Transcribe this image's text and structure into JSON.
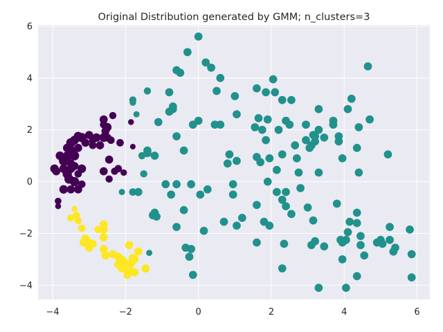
{
  "chart_data": {
    "type": "scatter",
    "title": "Original Distribution generated by GMM; n_clusters=3",
    "xlabel": "",
    "ylabel": "",
    "xlim": [
      -4.4,
      6.35
    ],
    "ylim": [
      -4.55,
      6.05
    ],
    "xticks": [
      -4,
      -2,
      0,
      2,
      4,
      6
    ],
    "yticks": [
      -4,
      -2,
      0,
      2,
      4,
      6
    ],
    "xtick_labels": [
      "−4",
      "−2",
      "0",
      "2",
      "4",
      "6"
    ],
    "ytick_labels": [
      "−4",
      "−2",
      "0",
      "2",
      "4",
      "6"
    ],
    "grid": true,
    "legend": false,
    "background": "#eaeaf2",
    "grid_color": "#ffffff",
    "colors": {
      "cluster_0": "#440154",
      "cluster_1": "#21918c",
      "cluster_2": "#fde725"
    },
    "series": [
      {
        "color": "#440154",
        "points": [
          [
            -3.0,
            1.8,
            38
          ],
          [
            -3.2,
            1.7,
            50
          ],
          [
            -3.3,
            1.75,
            45
          ],
          [
            -3.4,
            1.6,
            45
          ],
          [
            -3.5,
            1.5,
            50
          ],
          [
            -3.5,
            1.2,
            50
          ],
          [
            -3.6,
            1.3,
            42
          ],
          [
            -3.4,
            1.0,
            50
          ],
          [
            -3.6,
            1.0,
            45
          ],
          [
            -3.8,
            1.0,
            42
          ],
          [
            -3.7,
            0.8,
            50
          ],
          [
            -3.6,
            0.8,
            45
          ],
          [
            -3.7,
            0.5,
            42
          ],
          [
            -3.5,
            0.5,
            42
          ],
          [
            -3.95,
            0.5,
            42
          ],
          [
            -3.9,
            0.4,
            38
          ],
          [
            -3.6,
            0.3,
            50
          ],
          [
            -3.55,
            0.1,
            50
          ],
          [
            -3.4,
            0.0,
            50
          ],
          [
            -3.5,
            -0.3,
            38
          ],
          [
            -3.7,
            -0.3,
            42
          ],
          [
            -3.3,
            -0.3,
            38
          ],
          [
            -3.2,
            -0.1,
            32
          ],
          [
            -3.4,
            0.6,
            38
          ],
          [
            -3.2,
            0.5,
            42
          ],
          [
            -3.3,
            1.3,
            38
          ],
          [
            -3.1,
            1.5,
            38
          ],
          [
            -2.9,
            1.6,
            32
          ],
          [
            -2.9,
            1.4,
            32
          ],
          [
            -2.8,
            1.7,
            42
          ],
          [
            -2.6,
            1.7,
            45
          ],
          [
            -2.5,
            1.7,
            38
          ],
          [
            -2.6,
            2.4,
            38
          ],
          [
            -2.6,
            2.2,
            32
          ],
          [
            -2.5,
            2.1,
            42
          ],
          [
            -2.4,
            1.6,
            32
          ],
          [
            -2.35,
            2.55,
            30
          ],
          [
            -2.55,
            1.95,
            38
          ],
          [
            -2.7,
            1.4,
            38
          ],
          [
            -2.15,
            1.5,
            32
          ],
          [
            -2.45,
            0.85,
            38
          ],
          [
            -2.3,
            0.4,
            30
          ],
          [
            -2.2,
            0.5,
            32
          ],
          [
            -2.6,
            0.4,
            38
          ],
          [
            -2.05,
            0.35,
            24
          ],
          [
            -2.45,
            0.1,
            30
          ],
          [
            -1.85,
            2.3,
            20
          ],
          [
            -1.8,
            1.35,
            18
          ],
          [
            -3.85,
            -0.75,
            26
          ],
          [
            -3.85,
            -0.95,
            20
          ],
          [
            -3.3,
            0.3,
            32
          ],
          [
            -3.5,
            0.7,
            38
          ]
        ]
      },
      {
        "color": "#21918c",
        "points": [
          [
            0.0,
            5.6,
            38
          ],
          [
            -0.3,
            5.0,
            38
          ],
          [
            0.2,
            4.6,
            38
          ],
          [
            0.35,
            4.4,
            38
          ],
          [
            0.6,
            4.0,
            38
          ],
          [
            -0.6,
            4.3,
            38
          ],
          [
            -0.5,
            4.2,
            38
          ],
          [
            -1.4,
            3.5,
            30
          ],
          [
            -0.8,
            3.45,
            38
          ],
          [
            -1.8,
            3.15,
            30
          ],
          [
            -1.8,
            3.05,
            24
          ],
          [
            -0.7,
            2.8,
            38
          ],
          [
            -0.7,
            2.9,
            38
          ],
          [
            -0.8,
            2.7,
            38
          ],
          [
            -1.7,
            2.6,
            22
          ],
          [
            -1.1,
            2.3,
            38
          ],
          [
            -0.15,
            2.2,
            38
          ],
          [
            0.0,
            2.35,
            38
          ],
          [
            0.45,
            2.2,
            38
          ],
          [
            0.6,
            2.2,
            38
          ],
          [
            1.05,
            2.6,
            38
          ],
          [
            1.0,
            3.3,
            38
          ],
          [
            0.5,
            3.5,
            38
          ],
          [
            -1.4,
            1.2,
            38
          ],
          [
            -1.4,
            1.1,
            38
          ],
          [
            -1.2,
            1.0,
            38
          ],
          [
            -1.55,
            1.0,
            30
          ],
          [
            -0.6,
            1.75,
            38
          ],
          [
            -0.4,
            1.2,
            38
          ],
          [
            -1.5,
            0.3,
            30
          ],
          [
            -2.1,
            -0.4,
            22
          ],
          [
            -1.8,
            -0.4,
            32
          ],
          [
            -1.65,
            -0.4,
            38
          ],
          [
            -0.9,
            -0.1,
            38
          ],
          [
            -0.6,
            -0.1,
            38
          ],
          [
            -0.2,
            -0.1,
            38
          ],
          [
            -0.75,
            -0.5,
            38
          ],
          [
            -1.2,
            -1.2,
            38
          ],
          [
            -1.15,
            -1.35,
            38
          ],
          [
            -1.25,
            -1.3,
            38
          ],
          [
            -0.6,
            -1.75,
            38
          ],
          [
            -0.4,
            -1.1,
            38
          ],
          [
            -0.35,
            -2.55,
            38
          ],
          [
            -0.2,
            -2.6,
            38
          ],
          [
            -0.25,
            -2.9,
            38
          ],
          [
            -0.15,
            -3.6,
            38
          ],
          [
            -1.35,
            -2.75,
            22
          ],
          [
            0.05,
            -0.5,
            38
          ],
          [
            0.25,
            -0.3,
            38
          ],
          [
            0.15,
            -1.9,
            38
          ],
          [
            0.7,
            -1.55,
            38
          ],
          [
            0.8,
            0.7,
            38
          ],
          [
            0.85,
            1.05,
            38
          ],
          [
            1.05,
            0.8,
            38
          ],
          [
            0.95,
            -0.1,
            38
          ],
          [
            0.95,
            -0.5,
            38
          ],
          [
            1.2,
            -1.4,
            38
          ],
          [
            1.05,
            -1.7,
            38
          ],
          [
            1.6,
            3.6,
            38
          ],
          [
            1.55,
            2.1,
            38
          ],
          [
            1.65,
            2.45,
            38
          ],
          [
            1.75,
            2.0,
            38
          ],
          [
            1.9,
            2.4,
            38
          ],
          [
            1.85,
            1.6,
            38
          ],
          [
            1.85,
            3.45,
            38
          ],
          [
            2.05,
            3.95,
            38
          ],
          [
            2.1,
            3.45,
            38
          ],
          [
            2.3,
            3.15,
            38
          ],
          [
            2.55,
            3.15,
            38
          ],
          [
            2.4,
            2.35,
            38
          ],
          [
            2.5,
            2.2,
            38
          ],
          [
            2.2,
            2.0,
            38
          ],
          [
            1.95,
            0.9,
            38
          ],
          [
            1.6,
            0.95,
            38
          ],
          [
            1.7,
            0.75,
            38
          ],
          [
            2.3,
            1.05,
            38
          ],
          [
            2.15,
            0.45,
            38
          ],
          [
            2.65,
            1.4,
            38
          ],
          [
            2.7,
            0.9,
            38
          ],
          [
            2.75,
            0.35,
            38
          ],
          [
            2.8,
            -0.25,
            38
          ],
          [
            1.9,
            0.0,
            38
          ],
          [
            2.15,
            -0.4,
            38
          ],
          [
            2.4,
            -0.4,
            38
          ],
          [
            2.3,
            -0.7,
            38
          ],
          [
            2.4,
            -0.95,
            38
          ],
          [
            2.55,
            -1.25,
            38
          ],
          [
            1.6,
            -0.9,
            38
          ],
          [
            1.8,
            -1.55,
            38
          ],
          [
            1.95,
            -1.7,
            38
          ],
          [
            1.6,
            -2.35,
            38
          ],
          [
            2.35,
            -2.4,
            38
          ],
          [
            2.3,
            -3.35,
            38
          ],
          [
            2.95,
            2.2,
            38
          ],
          [
            2.95,
            1.6,
            38
          ],
          [
            3.05,
            1.3,
            38
          ],
          [
            3.1,
            1.4,
            38
          ],
          [
            3.2,
            1.55,
            38
          ],
          [
            3.15,
            1.8,
            38
          ],
          [
            3.2,
            1.75,
            38
          ],
          [
            3.3,
            2.0,
            38
          ],
          [
            3.3,
            2.8,
            38
          ],
          [
            3.45,
            1.7,
            38
          ],
          [
            3.7,
            2.2,
            38
          ],
          [
            3.7,
            2.35,
            38
          ],
          [
            3.85,
            1.55,
            38
          ],
          [
            3.85,
            1.75,
            38
          ],
          [
            3.95,
            0.9,
            38
          ],
          [
            4.1,
            2.8,
            38
          ],
          [
            4.2,
            3.2,
            38
          ],
          [
            4.35,
            1.3,
            38
          ],
          [
            4.4,
            2.1,
            38
          ],
          [
            4.4,
            0.35,
            38
          ],
          [
            4.65,
            4.45,
            38
          ],
          [
            4.7,
            2.4,
            38
          ],
          [
            5.2,
            1.05,
            38
          ],
          [
            3.3,
            0.35,
            38
          ],
          [
            3.0,
            -1.0,
            38
          ],
          [
            3.15,
            -1.5,
            38
          ],
          [
            3.2,
            -2.3,
            38
          ],
          [
            3.1,
            -2.45,
            38
          ],
          [
            3.3,
            -4.1,
            38
          ],
          [
            3.45,
            -2.5,
            38
          ],
          [
            3.8,
            -0.85,
            38
          ],
          [
            3.9,
            -2.25,
            38
          ],
          [
            3.95,
            -2.35,
            38
          ],
          [
            4.05,
            -2.25,
            38
          ],
          [
            3.95,
            -3.0,
            38
          ],
          [
            4.15,
            -1.55,
            38
          ],
          [
            4.1,
            -1.95,
            38
          ],
          [
            4.35,
            -1.2,
            38
          ],
          [
            4.35,
            -1.6,
            38
          ],
          [
            4.45,
            -2.45,
            38
          ],
          [
            4.45,
            -2.1,
            38
          ],
          [
            4.55,
            -2.85,
            38
          ],
          [
            4.35,
            -3.65,
            38
          ],
          [
            4.05,
            -4.1,
            38
          ],
          [
            4.9,
            -2.35,
            38
          ],
          [
            5.0,
            -2.25,
            38
          ],
          [
            5.05,
            -2.4,
            38
          ],
          [
            5.25,
            -2.25,
            38
          ],
          [
            5.25,
            -1.75,
            38
          ],
          [
            5.4,
            -2.55,
            38
          ],
          [
            5.35,
            -2.7,
            38
          ],
          [
            5.8,
            -1.85,
            38
          ],
          [
            5.85,
            -2.8,
            38
          ],
          [
            5.85,
            -3.7,
            38
          ]
        ]
      },
      {
        "color": "#fde725",
        "points": [
          [
            -3.35,
            -1.3,
            30
          ],
          [
            -3.5,
            -1.4,
            30
          ],
          [
            -3.3,
            -1.5,
            30
          ],
          [
            -3.4,
            -1.05,
            20
          ],
          [
            -2.6,
            -1.65,
            38
          ],
          [
            -2.6,
            -1.85,
            38
          ],
          [
            -2.75,
            -1.85,
            32
          ],
          [
            -2.9,
            -2.4,
            38
          ],
          [
            -3.1,
            -2.2,
            38
          ],
          [
            -3.05,
            -2.3,
            38
          ],
          [
            -3.15,
            -2.35,
            38
          ],
          [
            -3.0,
            -2.55,
            38
          ],
          [
            -2.6,
            -2.15,
            38
          ],
          [
            -2.6,
            -2.6,
            38
          ],
          [
            -2.55,
            -2.85,
            38
          ],
          [
            -2.35,
            -2.8,
            38
          ],
          [
            -2.2,
            -3.2,
            38
          ],
          [
            -2.2,
            -2.9,
            38
          ],
          [
            -2.1,
            -3.0,
            38
          ],
          [
            -2.05,
            -3.1,
            38
          ],
          [
            -2.05,
            -3.25,
            38
          ],
          [
            -2.0,
            -3.35,
            38
          ],
          [
            -1.95,
            -3.6,
            38
          ],
          [
            -1.9,
            -3.25,
            38
          ],
          [
            -1.85,
            -3.15,
            38
          ],
          [
            -1.8,
            -2.95,
            38
          ],
          [
            -1.75,
            -3.0,
            38
          ],
          [
            -1.9,
            -2.45,
            38
          ],
          [
            -1.75,
            -3.5,
            38
          ],
          [
            -1.65,
            -2.7,
            38
          ],
          [
            -1.45,
            -3.35,
            38
          ],
          [
            -2.1,
            -3.35,
            38
          ],
          [
            -2.0,
            -3.2,
            38
          ],
          [
            -2.15,
            -3.05,
            38
          ],
          [
            -1.9,
            -3.4,
            38
          ],
          [
            -3.2,
            -1.8,
            32
          ]
        ]
      }
    ]
  }
}
